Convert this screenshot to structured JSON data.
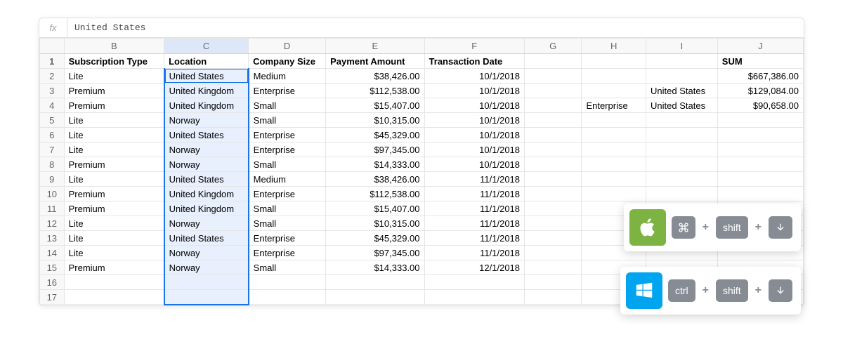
{
  "formula_bar": {
    "fx_label": "fx",
    "value": "United States"
  },
  "columns": [
    "B",
    "C",
    "D",
    "E",
    "F",
    "G",
    "H",
    "I",
    "J"
  ],
  "col_widths": {
    "row": 34,
    "B": 140,
    "C": 118,
    "D": 108,
    "E": 138,
    "F": 140,
    "G": 80,
    "H": 90,
    "I": 100,
    "J": 120
  },
  "selection": {
    "column": "C",
    "active_row_index": 1,
    "last_row_index": 16,
    "colors": {
      "active_border": "#1a73e8",
      "fill": "#e8f0fe",
      "header_fill": "#dde7f7"
    }
  },
  "header_row": {
    "B": "Subscription Type",
    "C": "Location",
    "D": "Company Size",
    "E": "Payment Amount",
    "F": "Transaction Date",
    "G": "",
    "H": "",
    "I": "",
    "J": "SUM"
  },
  "rows": [
    {
      "n": 2,
      "B": "Lite",
      "C": "United States",
      "D": "Medium",
      "E": "$38,426.00",
      "F": "10/1/2018",
      "G": "",
      "H": "",
      "I": "",
      "J": "$667,386.00"
    },
    {
      "n": 3,
      "B": "Premium",
      "C": "United Kingdom",
      "D": "Enterprise",
      "E": "$112,538.00",
      "F": "10/1/2018",
      "G": "",
      "H": "",
      "I": "United States",
      "J": "$129,084.00"
    },
    {
      "n": 4,
      "B": "Premium",
      "C": "United Kingdom",
      "D": "Small",
      "E": "$15,407.00",
      "F": "10/1/2018",
      "G": "",
      "H": "Enterprise",
      "I": "United States",
      "J": "$90,658.00"
    },
    {
      "n": 5,
      "B": "Lite",
      "C": "Norway",
      "D": "Small",
      "E": "$10,315.00",
      "F": "10/1/2018",
      "G": "",
      "H": "",
      "I": "",
      "J": ""
    },
    {
      "n": 6,
      "B": "Lite",
      "C": "United States",
      "D": "Enterprise",
      "E": "$45,329.00",
      "F": "10/1/2018",
      "G": "",
      "H": "",
      "I": "",
      "J": ""
    },
    {
      "n": 7,
      "B": "Lite",
      "C": "Norway",
      "D": "Enterprise",
      "E": "$97,345.00",
      "F": "10/1/2018",
      "G": "",
      "H": "",
      "I": "",
      "J": ""
    },
    {
      "n": 8,
      "B": "Premium",
      "C": "Norway",
      "D": "Small",
      "E": "$14,333.00",
      "F": "10/1/2018",
      "G": "",
      "H": "",
      "I": "",
      "J": ""
    },
    {
      "n": 9,
      "B": "Lite",
      "C": "United States",
      "D": "Medium",
      "E": "$38,426.00",
      "F": "11/1/2018",
      "G": "",
      "H": "",
      "I": "",
      "J": ""
    },
    {
      "n": 10,
      "B": "Premium",
      "C": "United Kingdom",
      "D": "Enterprise",
      "E": "$112,538.00",
      "F": "11/1/2018",
      "G": "",
      "H": "",
      "I": "",
      "J": ""
    },
    {
      "n": 11,
      "B": "Premium",
      "C": "United Kingdom",
      "D": "Small",
      "E": "$15,407.00",
      "F": "11/1/2018",
      "G": "",
      "H": "",
      "I": "",
      "J": ""
    },
    {
      "n": 12,
      "B": "Lite",
      "C": "Norway",
      "D": "Small",
      "E": "$10,315.00",
      "F": "11/1/2018",
      "G": "",
      "H": "",
      "I": "",
      "J": ""
    },
    {
      "n": 13,
      "B": "Lite",
      "C": "United States",
      "D": "Enterprise",
      "E": "$45,329.00",
      "F": "11/1/2018",
      "G": "",
      "H": "",
      "I": "",
      "J": ""
    },
    {
      "n": 14,
      "B": "Lite",
      "C": "Norway",
      "D": "Enterprise",
      "E": "$97,345.00",
      "F": "11/1/2018",
      "G": "",
      "H": "",
      "I": "",
      "J": ""
    },
    {
      "n": 15,
      "B": "Premium",
      "C": "Norway",
      "D": "Small",
      "E": "$14,333.00",
      "F": "12/1/2018",
      "G": "",
      "H": "",
      "I": "",
      "J": ""
    },
    {
      "n": 16,
      "B": "",
      "C": "",
      "D": "",
      "E": "",
      "F": "",
      "G": "",
      "H": "",
      "I": "",
      "J": ""
    },
    {
      "n": 17,
      "B": "",
      "C": "",
      "D": "",
      "E": "",
      "F": "",
      "G": "",
      "H": "",
      "I": "",
      "J": ""
    }
  ],
  "shortcuts": {
    "mac": {
      "os": "apple",
      "badge_color": "#7cb342",
      "keys": [
        "cmd-icon",
        "+",
        "shift",
        "+",
        "down-arrow-icon"
      ]
    },
    "windows": {
      "os": "windows",
      "badge_color": "#00a4ef",
      "keys": [
        "ctrl",
        "+",
        "shift",
        "+",
        "down-arrow-icon"
      ]
    },
    "labels": {
      "shift": "shift",
      "ctrl": "ctrl"
    },
    "key_bg": "#878c94"
  }
}
